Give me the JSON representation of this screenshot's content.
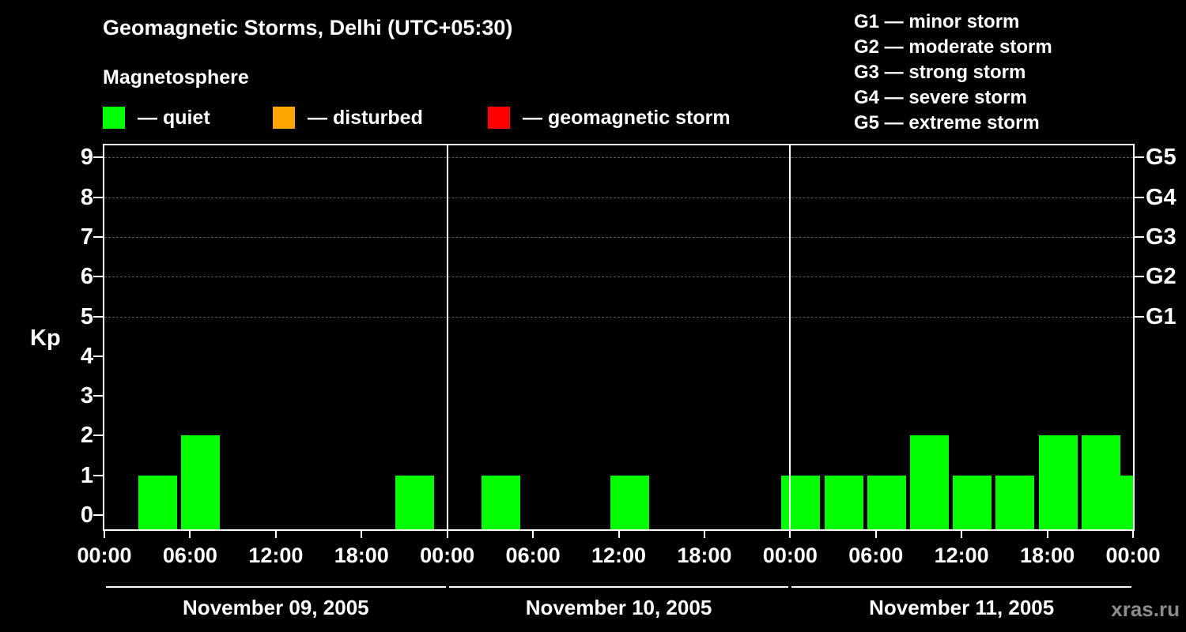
{
  "title": "Geomagnetic Storms, Delhi (UTC+05:30)",
  "subtitle": "Magnetosphere",
  "legend": {
    "quiet": {
      "label": "— quiet",
      "color": "#00ff00"
    },
    "disturbed": {
      "label": "— disturbed",
      "color": "#ffa500"
    },
    "storm": {
      "label": "— geomagnetic storm",
      "color": "#ff0000"
    }
  },
  "g_scale_legend": [
    "G1 — minor storm",
    "G2 — moderate storm",
    "G3 — strong storm",
    "G4 — severe storm",
    "G5 — extreme storm"
  ],
  "watermark": "xras.ru",
  "chart_data": {
    "type": "bar",
    "title": "Geomagnetic Storms, Delhi (UTC+05:30)",
    "ylabel": "Kp",
    "ylim": [
      0,
      9
    ],
    "y_ticks": [
      0,
      1,
      2,
      3,
      4,
      5,
      6,
      7,
      8,
      9
    ],
    "gridlines_kp": [
      5,
      6,
      7,
      8,
      9
    ],
    "grid": "dashed horizontal lines at Kp 5-9 only",
    "right_axis_labels": [
      {
        "label": "G5",
        "kp": 9
      },
      {
        "label": "G4",
        "kp": 8
      },
      {
        "label": "G3",
        "kp": 7
      },
      {
        "label": "G2",
        "kp": 6
      },
      {
        "label": "G1",
        "kp": 5
      }
    ],
    "x_tick_labels": [
      "00:00",
      "06:00",
      "12:00",
      "18:00",
      "00:00",
      "06:00",
      "12:00",
      "18:00",
      "00:00",
      "06:00",
      "12:00",
      "18:00",
      "00:00"
    ],
    "interval_hours": 3,
    "bar_color_quiet": "#00ff00",
    "days": [
      {
        "date": "November 09, 2005",
        "kp_values": [
          0,
          1,
          2,
          0,
          0,
          0,
          0,
          1
        ]
      },
      {
        "date": "November 10, 2005",
        "kp_values": [
          0,
          1,
          0,
          0,
          1,
          0,
          0,
          0
        ]
      },
      {
        "date": "November 11, 2005",
        "kp_values": [
          1,
          1,
          1,
          2,
          1,
          1,
          2,
          2
        ]
      }
    ],
    "clipped_next_interval_kp": 1
  }
}
